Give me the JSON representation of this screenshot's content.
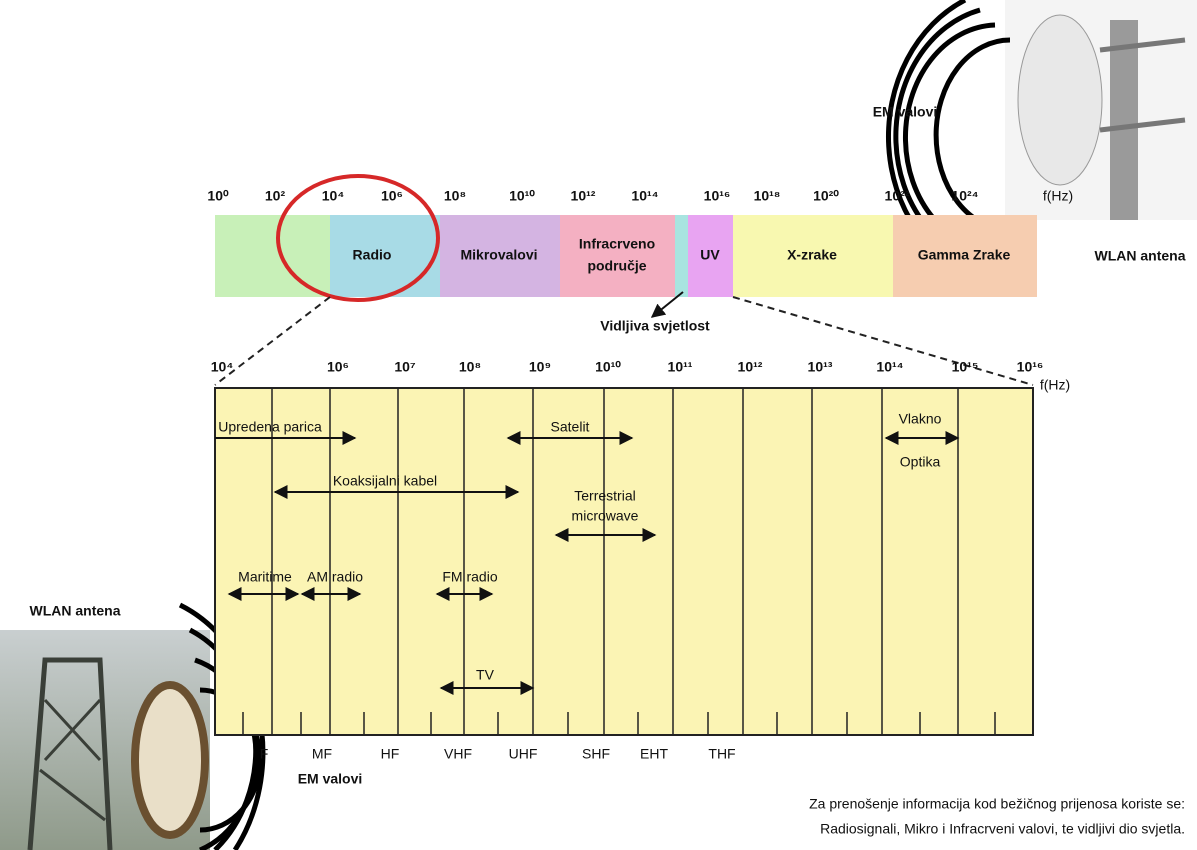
{
  "labels": {
    "em_top": "EM valovi",
    "wlan_right": "WLAN antena",
    "wlan_left": "WLAN antena",
    "em_bottom": "EM valovi",
    "visible": "Vidljiva svjetlost"
  },
  "spectrum": {
    "ticks": [
      "10⁰",
      "10²",
      "10⁴",
      "10⁶",
      "10⁸",
      "10¹⁰",
      "10¹²",
      "10¹⁴",
      "10¹⁶",
      "10¹⁸",
      "10²⁰",
      "10²²",
      "10²⁴"
    ],
    "unit": "f(Hz)",
    "bands": [
      [
        "Radio"
      ],
      [
        "Mikrovalovi"
      ],
      [
        "Infracrveno",
        "područje"
      ],
      [
        "UV"
      ],
      [
        "X-zrake"
      ],
      [
        "Gamma Zrake"
      ]
    ]
  },
  "detail": {
    "ticks": [
      "10⁴",
      "10⁶",
      "10⁷",
      "10⁸",
      "10⁹",
      "10¹⁰",
      "10¹¹",
      "10¹²",
      "10¹³",
      "10¹⁴",
      "10¹⁵",
      "10¹⁶"
    ],
    "unit": "f(Hz)",
    "bands": [
      "F",
      "MF",
      "HF",
      "VHF",
      "UHF",
      "SHF",
      "EHT",
      "THF"
    ],
    "media": [
      [
        "Upredena parica"
      ],
      [
        "Koaksijalni kabel"
      ],
      [
        "Satelit"
      ],
      [
        "Terrestrial",
        "microwave"
      ],
      [
        "Vlakno",
        "Optika"
      ],
      [
        "Maritime"
      ],
      [
        "AM radio"
      ],
      [
        "FM radio"
      ],
      [
        "TV"
      ]
    ]
  },
  "caption": [
    "Za prenošenje informacija kod bežičnog prijenosa koriste se:",
    "Radiosignali, Mikro i Infracrveni valovi, te vidljivi dio svjetla."
  ]
}
